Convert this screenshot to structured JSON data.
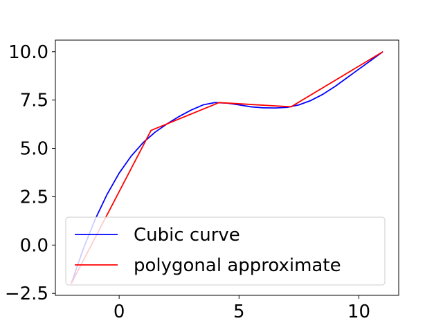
{
  "chart_data": {
    "type": "line",
    "title": "",
    "xlabel": "",
    "ylabel": "",
    "xlim": [
      -2.66,
      11.66
    ],
    "ylim": [
      -2.6,
      10.6
    ],
    "xticks": [
      0,
      5,
      10
    ],
    "xtick_labels": [
      "0",
      "5",
      "10"
    ],
    "yticks": [
      -2.5,
      0.0,
      2.5,
      5.0,
      7.5,
      10.0
    ],
    "ytick_labels": [
      "−2.5",
      "0.0",
      "2.5",
      "5.0",
      "7.5",
      "10.0"
    ],
    "grid": false,
    "legend_position": "lower-left",
    "series": [
      {
        "name": "Cubic curve",
        "color": "#0000ff",
        "x": [
          -2.0,
          -1.5,
          -1.0,
          -0.5,
          0.0,
          0.5,
          1.0,
          1.5,
          2.0,
          2.5,
          3.0,
          3.5,
          4.0,
          4.5,
          5.0,
          5.5,
          6.0,
          6.5,
          7.0,
          7.5,
          8.0,
          8.5,
          9.0,
          9.5,
          10.0,
          10.5,
          11.0
        ],
        "y": [
          -2.0,
          -0.21,
          1.33,
          2.63,
          3.72,
          4.6,
          5.3,
          5.84,
          6.27,
          6.65,
          6.98,
          7.25,
          7.37,
          7.34,
          7.25,
          7.15,
          7.1,
          7.09,
          7.12,
          7.25,
          7.48,
          7.8,
          8.2,
          8.65,
          9.1,
          9.55,
          10.0
        ]
      },
      {
        "name": "polygonal approximate",
        "color": "#ff0000",
        "x": [
          -2.0,
          1.33,
          4.17,
          7.17,
          11.0
        ],
        "y": [
          -2.0,
          5.93,
          7.37,
          7.15,
          10.0
        ]
      }
    ]
  }
}
